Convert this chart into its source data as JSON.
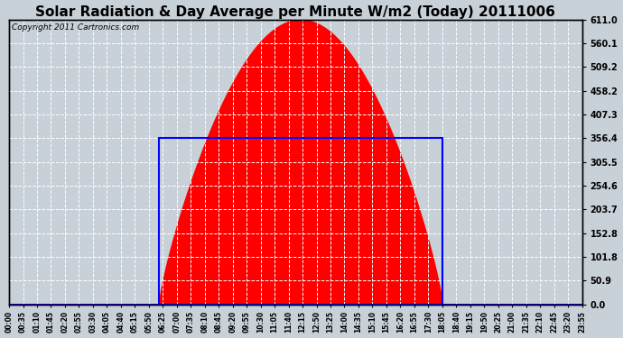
{
  "title": "Solar Radiation & Day Average per Minute W/m2 (Today) 20111006",
  "copyright": "Copyright 2011 Cartronics.com",
  "yticks": [
    0.0,
    50.9,
    101.8,
    152.8,
    203.7,
    254.6,
    305.5,
    356.4,
    407.3,
    458.2,
    509.2,
    560.1,
    611.0
  ],
  "ymax": 611.0,
  "ymin": 0.0,
  "day_average": 356.4,
  "sunrise_idx": 75,
  "sunset_idx": 217,
  "peak_idx": 146,
  "peak_value": 611.0,
  "bg_color": "#c8d0d8",
  "fill_color": "red",
  "avg_rect_color": "blue",
  "title_fontsize": 11,
  "copyright_fontsize": 6.5,
  "n_points": 288,
  "x_step": 7,
  "fig_width": 6.9,
  "fig_height": 3.75,
  "dpi": 100
}
